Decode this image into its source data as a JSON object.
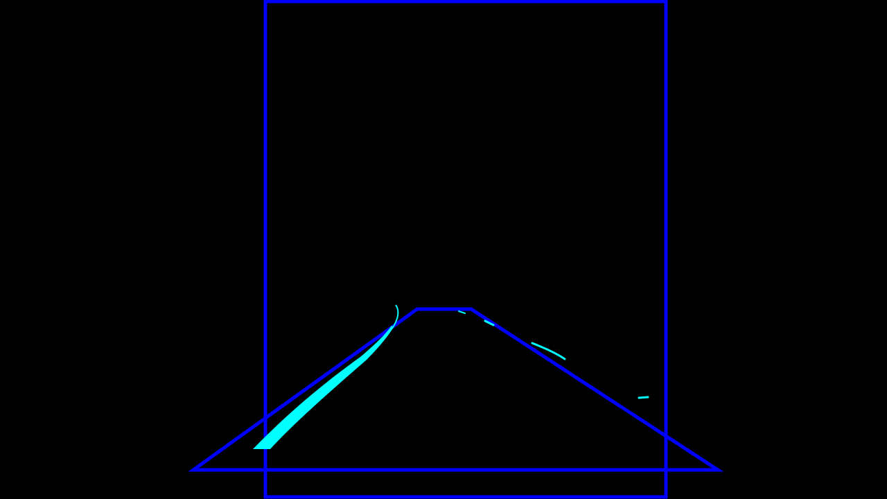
{
  "colors": {
    "background": "#000000",
    "overlay_lines": "#0000ff",
    "detected_lane_pixels": "#00ffff"
  },
  "overlays": {
    "region_box": "rectangle",
    "roi_trapezoid": "trapezoid",
    "left_lane_marking": "detected-pixels",
    "right_lane_marking": "detected-pixels"
  }
}
